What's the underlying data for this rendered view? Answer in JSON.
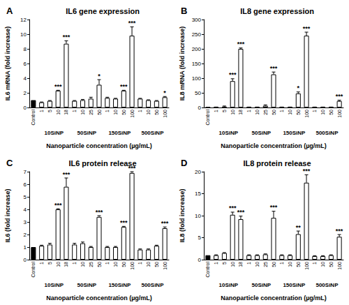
{
  "chart_data": [
    {
      "type": "bar",
      "panel": "A",
      "title": "IL6 gene expression",
      "ylabel": "IL6 mRNA (fold increase)",
      "xlabel": "Nanoparticle concentration (µg/mL)",
      "categories": [
        "Control",
        "1",
        "5",
        "10",
        "18",
        "1",
        "10",
        "25",
        "50",
        "1",
        "10",
        "50",
        "100",
        "1",
        "10",
        "50",
        "100"
      ],
      "group_labels": [
        null,
        "10SiNP",
        "10SiNP",
        "10SiNP",
        "10SiNP",
        "50SiNP",
        "50SiNP",
        "50SiNP",
        "50SiNP",
        "150SiNP",
        "150SiNP",
        "150SiNP",
        "150SiNP",
        "500SiNP",
        "500SiNP",
        "500SiNP",
        "500SiNP"
      ],
      "values": [
        1,
        0.7,
        0.9,
        2.3,
        8.7,
        0.9,
        1.0,
        1.2,
        3.1,
        1.3,
        1.2,
        2.3,
        9.8,
        1.2,
        1.0,
        0.9,
        1.4
      ],
      "errors": [
        null,
        0.05,
        0.05,
        0.05,
        0.4,
        0.05,
        0.1,
        0.2,
        0.7,
        0.1,
        0.05,
        0.05,
        1.2,
        0.05,
        0.05,
        0.05,
        0.1
      ],
      "significance": [
        null,
        null,
        null,
        "***",
        "***",
        null,
        null,
        null,
        "*",
        null,
        null,
        "***",
        "***",
        null,
        null,
        null,
        "*"
      ],
      "colors": [
        "#000000",
        "#ffffff",
        "#ffffff",
        "#ffffff",
        "#ffffff",
        "#ffffff",
        "#ffffff",
        "#ffffff",
        "#ffffff",
        "#ffffff",
        "#ffffff",
        "#ffffff",
        "#ffffff",
        "#ffffff",
        "#ffffff",
        "#ffffff",
        "#ffffff"
      ],
      "ylim": [
        0,
        12
      ],
      "yticks": [
        0,
        2,
        4,
        6,
        8,
        10,
        12
      ],
      "grid": false
    },
    {
      "type": "bar",
      "panel": "B",
      "title": "IL8 gene expression",
      "ylabel": "IL8 mRNA (fold increase)",
      "xlabel": "Nanoparticle concentration (µg/mL)",
      "categories": [
        "Control",
        "1",
        "5",
        "10",
        "18",
        "1",
        "10",
        "25",
        "50",
        "1",
        "10",
        "50",
        "100",
        "1",
        "10",
        "50",
        "100"
      ],
      "group_labels": [
        null,
        "10SiNP",
        "10SiNP",
        "10SiNP",
        "10SiNP",
        "50SiNP",
        "50SiNP",
        "50SiNP",
        "50SiNP",
        "150SiNP",
        "150SiNP",
        "150SiNP",
        "150SiNP",
        "500SiNP",
        "500SiNP",
        "500SiNP",
        "500SiNP"
      ],
      "values": [
        1,
        1,
        3,
        90,
        200,
        1,
        1,
        6,
        113,
        1,
        1,
        48,
        245,
        1,
        1,
        1,
        22
      ],
      "errors": [
        null,
        0.5,
        2,
        8,
        3,
        0.5,
        0.5,
        3,
        8,
        0.5,
        0.5,
        5,
        12,
        0.5,
        0.5,
        0.5,
        3
      ],
      "significance": [
        null,
        null,
        null,
        "***",
        "***",
        null,
        null,
        null,
        "***",
        null,
        null,
        "*",
        "***",
        null,
        null,
        null,
        "***"
      ],
      "colors": [
        "#000000",
        "#ffffff",
        "#ffffff",
        "#ffffff",
        "#ffffff",
        "#ffffff",
        "#ffffff",
        "#ffffff",
        "#ffffff",
        "#ffffff",
        "#ffffff",
        "#ffffff",
        "#ffffff",
        "#ffffff",
        "#ffffff",
        "#ffffff",
        "#ffffff"
      ],
      "ylim": [
        0,
        300
      ],
      "yticks": [
        0,
        50,
        100,
        150,
        200,
        250,
        300
      ],
      "grid": false
    },
    {
      "type": "bar",
      "panel": "C",
      "title": "IL6 protein release",
      "ylabel": "IL6 (fold increase)",
      "xlabel": "Nanoparticle concentration (µg/mL)",
      "categories": [
        "Control",
        "1",
        "5",
        "10",
        "18",
        "1",
        "10",
        "25",
        "50",
        "1",
        "10",
        "50",
        "100",
        "1",
        "10",
        "50",
        "100"
      ],
      "group_labels": [
        null,
        "10SiNP",
        "10SiNP",
        "10SiNP",
        "10SiNP",
        "50SiNP",
        "50SiNP",
        "50SiNP",
        "50SiNP",
        "150SiNP",
        "150SiNP",
        "150SiNP",
        "150SiNP",
        "500SiNP",
        "500SiNP",
        "500SiNP",
        "500SiNP"
      ],
      "values": [
        1,
        1.1,
        1.2,
        4.0,
        5.8,
        1.2,
        1.3,
        1.0,
        3.4,
        1.0,
        1.0,
        2.6,
        6.9,
        0.8,
        0.8,
        1.1,
        2.5
      ],
      "errors": [
        null,
        0.05,
        0.1,
        0.05,
        0.7,
        0.1,
        0.1,
        0.05,
        0.1,
        0.05,
        0.05,
        0.05,
        0.1,
        0.05,
        0.05,
        0.05,
        0.1
      ],
      "significance": [
        null,
        null,
        null,
        "***",
        "***",
        null,
        null,
        null,
        "***",
        null,
        null,
        "***",
        "***",
        null,
        null,
        null,
        "***"
      ],
      "colors": [
        "#000000",
        "#ffffff",
        "#ffffff",
        "#ffffff",
        "#ffffff",
        "#ffffff",
        "#ffffff",
        "#ffffff",
        "#ffffff",
        "#ffffff",
        "#ffffff",
        "#ffffff",
        "#ffffff",
        "#ffffff",
        "#ffffff",
        "#ffffff",
        "#ffffff"
      ],
      "ylim": [
        0,
        7
      ],
      "yticks": [
        0,
        1,
        2,
        3,
        4,
        5,
        6,
        7
      ],
      "grid": false
    },
    {
      "type": "bar",
      "panel": "D",
      "title": "IL8 protein release",
      "ylabel": "IL8 (fold increase)",
      "xlabel": "Nanoparticle concentration (µg/mL)",
      "categories": [
        "Control",
        "1",
        "5",
        "10",
        "18",
        "1",
        "10",
        "25",
        "50",
        "1",
        "10",
        "50",
        "100",
        "1",
        "10",
        "50",
        "100"
      ],
      "group_labels": [
        null,
        "10SiNP",
        "10SiNP",
        "10SiNP",
        "10SiNP",
        "50SiNP",
        "50SiNP",
        "50SiNP",
        "50SiNP",
        "150SiNP",
        "150SiNP",
        "150SiNP",
        "150SiNP",
        "500SiNP",
        "500SiNP",
        "500SiNP",
        "500SiNP"
      ],
      "values": [
        1,
        1,
        1.5,
        10.2,
        9.2,
        1,
        1,
        1.2,
        9.5,
        1,
        1,
        5.8,
        17.5,
        0.8,
        0.8,
        1,
        5.2
      ],
      "errors": [
        null,
        0.1,
        0.1,
        0.6,
        0.7,
        0.1,
        0.1,
        0.1,
        1.5,
        0.1,
        0.1,
        0.7,
        1.8,
        0.1,
        0.1,
        0.1,
        0.5
      ],
      "significance": [
        null,
        null,
        null,
        "***",
        "***",
        null,
        null,
        null,
        "***",
        null,
        null,
        "**",
        "***",
        null,
        null,
        null,
        "***"
      ],
      "colors": [
        "#000000",
        "#ffffff",
        "#ffffff",
        "#ffffff",
        "#ffffff",
        "#ffffff",
        "#ffffff",
        "#ffffff",
        "#ffffff",
        "#ffffff",
        "#ffffff",
        "#ffffff",
        "#ffffff",
        "#ffffff",
        "#ffffff",
        "#ffffff",
        "#ffffff"
      ],
      "ylim": [
        0,
        20
      ],
      "yticks": [
        0,
        5,
        10,
        15,
        20
      ],
      "grid": false
    }
  ]
}
